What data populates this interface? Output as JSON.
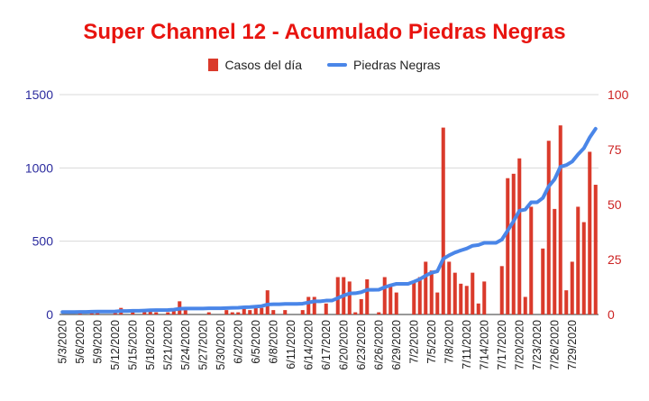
{
  "colors": {
    "title": "#e8140f",
    "bar": "#da3a2b",
    "line": "#4a86e8",
    "left_axis": "#2b2b9e",
    "right_axis": "#cc2222",
    "grid": "#d9d9d9"
  },
  "chart_data": {
    "type": "bar+line",
    "title": "Super Channel 12 - Acumulado Piedras Negras",
    "legend_position": "top",
    "grid": true,
    "left_axis": {
      "range": [
        0,
        1500
      ],
      "ticks": [
        "0",
        "500",
        "1000",
        "1500"
      ],
      "series": "Piedras Negras"
    },
    "right_axis": {
      "range": [
        0,
        100
      ],
      "ticks": [
        "0",
        "25",
        "50",
        "75",
        "100"
      ],
      "series": "Casos del día"
    },
    "x_tick_labels": [
      "5/3/2020",
      "5/6/2020",
      "5/9/2020",
      "5/12/2020",
      "5/15/2020",
      "5/18/2020",
      "5/21/2020",
      "5/24/2020",
      "5/27/2020",
      "5/30/2020",
      "6/2/2020",
      "6/5/2020",
      "6/8/2020",
      "6/11/2020",
      "6/14/2020",
      "6/17/2020",
      "6/20/2020",
      "6/23/2020",
      "6/26/2020",
      "6/29/2020",
      "7/2/2020",
      "7/5/2020",
      "7/8/2020",
      "7/11/2020",
      "7/14/2020",
      "7/17/2020",
      "7/20/2020",
      "7/23/2020",
      "7/26/2020",
      "7/29/2020"
    ],
    "series": [
      {
        "name": "Casos del día",
        "type": "bar",
        "values": [
          0,
          0,
          0,
          1,
          0,
          1,
          1,
          0,
          0,
          1,
          3,
          0,
          1,
          0,
          2,
          2,
          1,
          0,
          1,
          2,
          6,
          2,
          0,
          0,
          0,
          1,
          0,
          0,
          2,
          1,
          1,
          3,
          2,
          3,
          3,
          11,
          2,
          0,
          2,
          0,
          0,
          2,
          8,
          8,
          0,
          5,
          0,
          17,
          17,
          15,
          1,
          7,
          16,
          0,
          1,
          17,
          13,
          10,
          0,
          0,
          15,
          17,
          24,
          20,
          10,
          85,
          24,
          19,
          14,
          13,
          19,
          5,
          15,
          0,
          0,
          22,
          62,
          64,
          71,
          8,
          49,
          0,
          30,
          79,
          48,
          86,
          11,
          24,
          49,
          42,
          74,
          59
        ]
      },
      {
        "name": "Piedras Negras",
        "type": "line",
        "values": [
          17,
          17,
          17,
          18,
          18,
          19,
          20,
          20,
          20,
          21,
          24,
          24,
          25,
          25,
          27,
          29,
          30,
          30,
          31,
          33,
          39,
          41,
          41,
          41,
          41,
          42,
          42,
          42,
          44,
          45,
          46,
          49,
          51,
          54,
          57,
          68,
          70,
          70,
          72,
          72,
          72,
          74,
          82,
          90,
          90,
          95,
          95,
          112,
          129,
          144,
          145,
          152,
          168,
          168,
          169,
          186,
          199,
          209,
          209,
          209,
          224,
          241,
          265,
          285,
          295,
          380,
          404,
          423,
          437,
          450,
          469,
          474,
          489,
          489,
          489,
          511,
          573,
          637,
          708,
          716,
          765,
          765,
          795,
          874,
          922,
          1008,
          1019,
          1043,
          1092,
          1134,
          1208,
          1267
        ]
      }
    ]
  }
}
